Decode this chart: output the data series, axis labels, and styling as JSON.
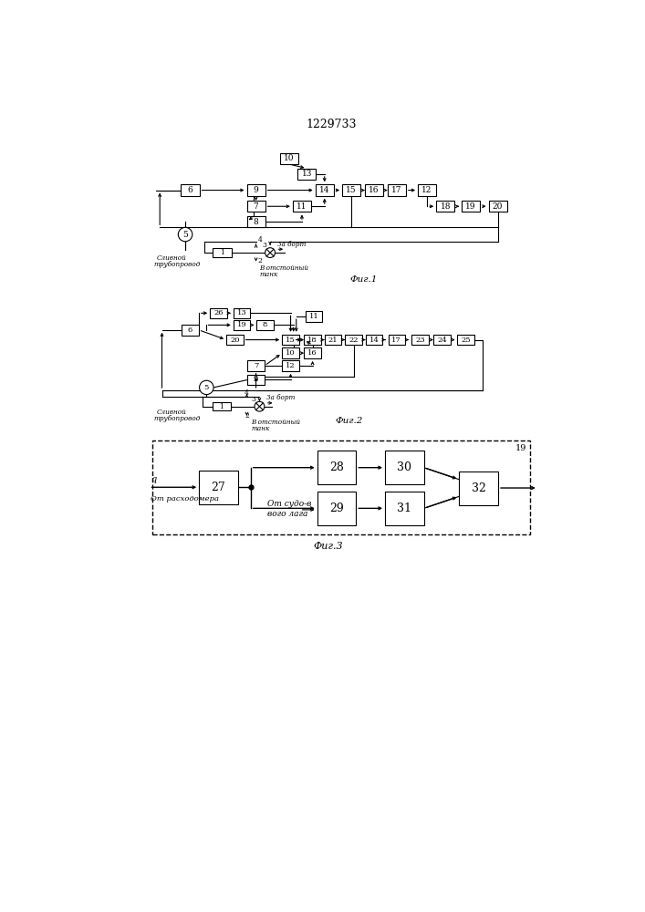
{
  "title": "1229733",
  "fig1_label": "Фиг.1",
  "fig2_label": "Фиг.2",
  "fig3_label": "Фиг.3",
  "bg": "#ffffff",
  "lc": "#000000"
}
